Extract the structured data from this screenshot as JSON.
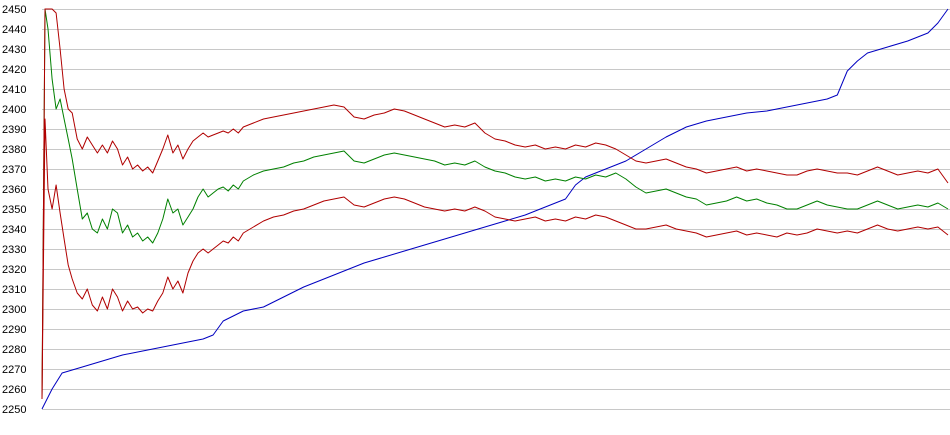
{
  "chart_data": {
    "type": "line",
    "title": "",
    "xlabel": "",
    "ylabel": "",
    "ylim": [
      2250,
      2450
    ],
    "y_ticks": [
      2250,
      2260,
      2270,
      2280,
      2290,
      2300,
      2310,
      2320,
      2330,
      2340,
      2350,
      2360,
      2370,
      2380,
      2390,
      2400,
      2410,
      2420,
      2430,
      2440,
      2450
    ],
    "x_range": [
      0,
      900
    ],
    "grid": "horizontal",
    "legend": "none",
    "series": [
      {
        "color": "#0000c0",
        "x": [
          0,
          10,
          20,
          40,
          60,
          80,
          100,
          120,
          140,
          160,
          170,
          180,
          200,
          220,
          240,
          260,
          280,
          300,
          320,
          340,
          360,
          380,
          400,
          420,
          440,
          460,
          480,
          500,
          520,
          530,
          540,
          560,
          580,
          600,
          620,
          640,
          660,
          680,
          700,
          720,
          740,
          760,
          780,
          790,
          800,
          810,
          820,
          840,
          860,
          880,
          890,
          900
        ],
        "values": [
          2250,
          2260,
          2268,
          2271,
          2274,
          2277,
          2279,
          2281,
          2283,
          2285,
          2287,
          2294,
          2299,
          2301,
          2306,
          2311,
          2315,
          2319,
          2323,
          2326,
          2329,
          2332,
          2335,
          2338,
          2341,
          2344,
          2347,
          2351,
          2355,
          2362,
          2366,
          2370,
          2374,
          2380,
          2386,
          2391,
          2394,
          2396,
          2398,
          2399,
          2401,
          2403,
          2405,
          2407,
          2419,
          2424,
          2428,
          2431,
          2434,
          2438,
          2443,
          2450
        ]
      },
      {
        "color": "#008000",
        "x": [
          0,
          3,
          6,
          10,
          14,
          18,
          22,
          26,
          30,
          35,
          40,
          45,
          50,
          55,
          60,
          65,
          70,
          75,
          80,
          85,
          90,
          95,
          100,
          105,
          110,
          115,
          120,
          125,
          130,
          135,
          140,
          145,
          150,
          155,
          160,
          165,
          170,
          175,
          180,
          185,
          190,
          195,
          200,
          210,
          220,
          230,
          240,
          250,
          260,
          270,
          280,
          290,
          300,
          310,
          320,
          330,
          340,
          350,
          360,
          370,
          380,
          390,
          400,
          410,
          420,
          430,
          440,
          450,
          460,
          470,
          480,
          490,
          500,
          510,
          520,
          530,
          540,
          550,
          560,
          570,
          580,
          590,
          600,
          610,
          620,
          630,
          640,
          650,
          660,
          670,
          680,
          690,
          700,
          710,
          720,
          730,
          740,
          750,
          760,
          770,
          780,
          790,
          800,
          810,
          820,
          830,
          840,
          850,
          860,
          870,
          880,
          890,
          900
        ],
        "values": [
          2255,
          2450,
          2440,
          2415,
          2400,
          2405,
          2395,
          2385,
          2375,
          2360,
          2345,
          2348,
          2340,
          2338,
          2345,
          2340,
          2350,
          2348,
          2338,
          2342,
          2336,
          2338,
          2334,
          2336,
          2333,
          2338,
          2345,
          2355,
          2348,
          2350,
          2342,
          2346,
          2350,
          2356,
          2360,
          2356,
          2358,
          2360,
          2361,
          2359,
          2362,
          2360,
          2364,
          2367,
          2369,
          2370,
          2371,
          2373,
          2374,
          2376,
          2377,
          2378,
          2379,
          2374,
          2373,
          2375,
          2377,
          2378,
          2377,
          2376,
          2375,
          2374,
          2372,
          2373,
          2372,
          2374,
          2371,
          2369,
          2368,
          2366,
          2365,
          2366,
          2364,
          2365,
          2364,
          2366,
          2365,
          2367,
          2366,
          2368,
          2365,
          2361,
          2358,
          2359,
          2360,
          2358,
          2356,
          2355,
          2352,
          2353,
          2354,
          2356,
          2354,
          2355,
          2353,
          2352,
          2350,
          2350,
          2352,
          2354,
          2352,
          2351,
          2350,
          2350,
          2352,
          2354,
          2352,
          2350,
          2351,
          2352,
          2351,
          2353,
          2350
        ]
      },
      {
        "color": "#b00000",
        "x": [
          0,
          3,
          6,
          10,
          14,
          18,
          22,
          26,
          30,
          35,
          40,
          45,
          50,
          55,
          60,
          65,
          70,
          75,
          80,
          85,
          90,
          95,
          100,
          105,
          110,
          115,
          120,
          125,
          130,
          135,
          140,
          145,
          150,
          155,
          160,
          165,
          170,
          175,
          180,
          185,
          190,
          195,
          200,
          210,
          220,
          230,
          240,
          250,
          260,
          270,
          280,
          290,
          300,
          310,
          320,
          330,
          340,
          350,
          360,
          370,
          380,
          390,
          400,
          410,
          420,
          430,
          440,
          450,
          460,
          470,
          480,
          490,
          500,
          510,
          520,
          530,
          540,
          550,
          560,
          570,
          580,
          590,
          600,
          610,
          620,
          630,
          640,
          650,
          660,
          670,
          680,
          690,
          700,
          710,
          720,
          730,
          740,
          750,
          760,
          770,
          780,
          790,
          800,
          810,
          820,
          830,
          840,
          850,
          860,
          870,
          880,
          890,
          900
        ],
        "values": [
          2255,
          2450,
          2450,
          2450,
          2448,
          2430,
          2410,
          2400,
          2398,
          2385,
          2380,
          2386,
          2382,
          2378,
          2382,
          2378,
          2384,
          2380,
          2372,
          2376,
          2370,
          2372,
          2369,
          2371,
          2368,
          2374,
          2380,
          2387,
          2378,
          2382,
          2375,
          2380,
          2384,
          2386,
          2388,
          2386,
          2387,
          2388,
          2389,
          2388,
          2390,
          2388,
          2391,
          2393,
          2395,
          2396,
          2397,
          2398,
          2399,
          2400,
          2401,
          2402,
          2401,
          2396,
          2395,
          2397,
          2398,
          2400,
          2399,
          2397,
          2395,
          2393,
          2391,
          2392,
          2391,
          2393,
          2388,
          2385,
          2384,
          2382,
          2381,
          2382,
          2380,
          2381,
          2380,
          2382,
          2381,
          2383,
          2382,
          2380,
          2377,
          2374,
          2373,
          2374,
          2375,
          2373,
          2371,
          2370,
          2368,
          2369,
          2370,
          2371,
          2369,
          2370,
          2369,
          2368,
          2367,
          2367,
          2369,
          2370,
          2369,
          2368,
          2368,
          2367,
          2369,
          2371,
          2369,
          2367,
          2368,
          2369,
          2368,
          2370,
          2363
        ]
      },
      {
        "color": "#b00000",
        "x": [
          0,
          3,
          6,
          10,
          14,
          18,
          22,
          26,
          30,
          35,
          40,
          45,
          50,
          55,
          60,
          65,
          70,
          75,
          80,
          85,
          90,
          95,
          100,
          105,
          110,
          115,
          120,
          125,
          130,
          135,
          140,
          145,
          150,
          155,
          160,
          165,
          170,
          175,
          180,
          185,
          190,
          195,
          200,
          210,
          220,
          230,
          240,
          250,
          260,
          270,
          280,
          290,
          300,
          310,
          320,
          330,
          340,
          350,
          360,
          370,
          380,
          390,
          400,
          410,
          420,
          430,
          440,
          450,
          460,
          470,
          480,
          490,
          500,
          510,
          520,
          530,
          540,
          550,
          560,
          570,
          580,
          590,
          600,
          610,
          620,
          630,
          640,
          650,
          660,
          670,
          680,
          690,
          700,
          710,
          720,
          730,
          740,
          750,
          760,
          770,
          780,
          790,
          800,
          810,
          820,
          830,
          840,
          850,
          860,
          870,
          880,
          890,
          900
        ],
        "values": [
          2255,
          2395,
          2360,
          2350,
          2362,
          2348,
          2335,
          2322,
          2315,
          2308,
          2305,
          2310,
          2302,
          2299,
          2306,
          2300,
          2310,
          2306,
          2299,
          2304,
          2300,
          2301,
          2298,
          2300,
          2299,
          2304,
          2308,
          2316,
          2310,
          2314,
          2308,
          2318,
          2324,
          2328,
          2330,
          2328,
          2330,
          2332,
          2334,
          2333,
          2336,
          2334,
          2338,
          2341,
          2344,
          2346,
          2347,
          2349,
          2350,
          2352,
          2354,
          2355,
          2356,
          2352,
          2351,
          2353,
          2355,
          2356,
          2355,
          2353,
          2351,
          2350,
          2349,
          2350,
          2349,
          2351,
          2349,
          2346,
          2345,
          2344,
          2345,
          2346,
          2344,
          2345,
          2344,
          2346,
          2345,
          2347,
          2346,
          2344,
          2342,
          2340,
          2340,
          2341,
          2342,
          2340,
          2339,
          2338,
          2336,
          2337,
          2338,
          2339,
          2337,
          2338,
          2337,
          2336,
          2338,
          2337,
          2338,
          2340,
          2339,
          2338,
          2339,
          2338,
          2340,
          2342,
          2340,
          2339,
          2340,
          2341,
          2340,
          2341,
          2337
        ]
      }
    ]
  }
}
